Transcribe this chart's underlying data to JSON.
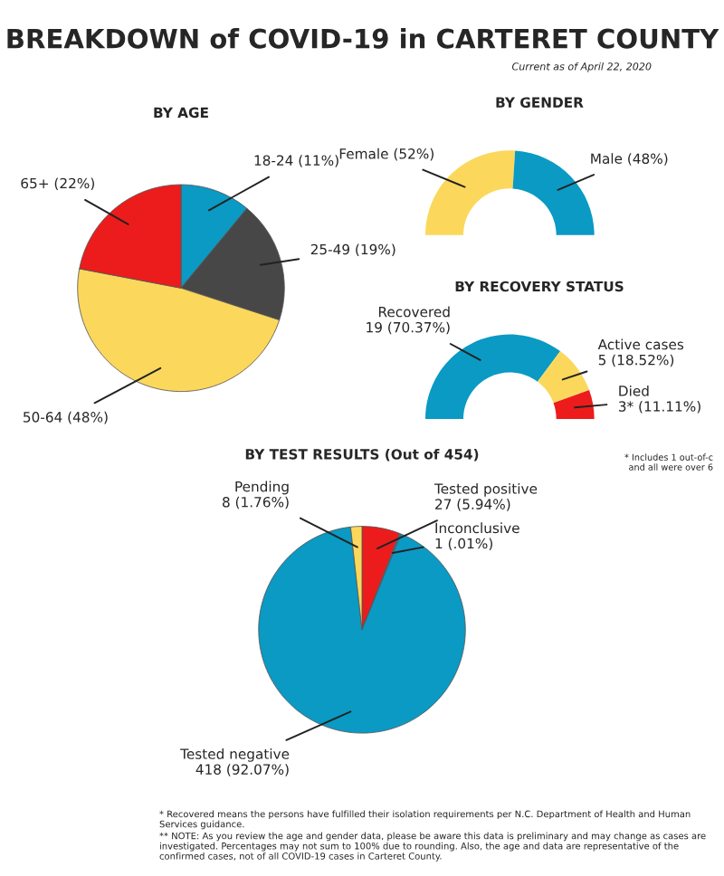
{
  "chart_data": [
    {
      "type": "other",
      "title": "BREAKDOWN of COVID-19 in CARTERET COUNTY",
      "subtitle": "Current as of April 22, 2020",
      "annotations": [
        "* Recovered means the persons have fulfilled their isolation requirements per N.C. Department of Health and Human Services guidance.",
        "** NOTE: As you review the age and gender data, please be aware this data is preliminary and may change as cases are investigated. Percentages may not sum to 100% due to rounding. Also, the age and data are representative of the confirmed cases, not of all COVID-19 cases in Carteret County."
      ]
    },
    {
      "type": "pie",
      "title": "BY AGE",
      "categories": [
        "18-24",
        "25-49",
        "50-64",
        "65+"
      ],
      "values": [
        11,
        19,
        48,
        22
      ],
      "value_labels": [
        "(11%)",
        "(19%)",
        "(48%)",
        "(22%)"
      ],
      "colors": [
        "#0a9ac4",
        "#474747",
        "#fbd85c",
        "#ec1c1c"
      ]
    },
    {
      "type": "donut",
      "title": "BY GENDER",
      "categories": [
        "Female",
        "Male"
      ],
      "values": [
        52,
        48
      ],
      "value_labels": [
        "(52%)",
        "(48%)"
      ],
      "colors": [
        "#fbd85c",
        "#0a9ac4"
      ]
    },
    {
      "type": "donut",
      "title": "BY RECOVERY STATUS",
      "categories": [
        "Recovered",
        "Active cases",
        "Died"
      ],
      "values": [
        19,
        5,
        3
      ],
      "value_labels": [
        "19 (70.37%)",
        "5 (18.52%)",
        "3* (11.11%)"
      ],
      "colors": [
        "#0a9ac4",
        "#fbd85c",
        "#ec1c1c"
      ],
      "annotations": [
        "* Includes 1 out-of-c\nand all were over 6"
      ]
    },
    {
      "type": "pie",
      "title": "BY TEST RESULTS (Out of 454)",
      "categories": [
        "Tested positive",
        "Inconclusive",
        "Tested negative",
        "Pending"
      ],
      "values": [
        27,
        1,
        418,
        8
      ],
      "value_labels": [
        "27 (5.94%)",
        "1 (.01%)",
        "418 (92.07%)",
        "8 (1.76%)"
      ],
      "colors": [
        "#ec1c1c",
        "#0a9ac4",
        "#0a9ac4",
        "#fbd85c"
      ]
    }
  ]
}
